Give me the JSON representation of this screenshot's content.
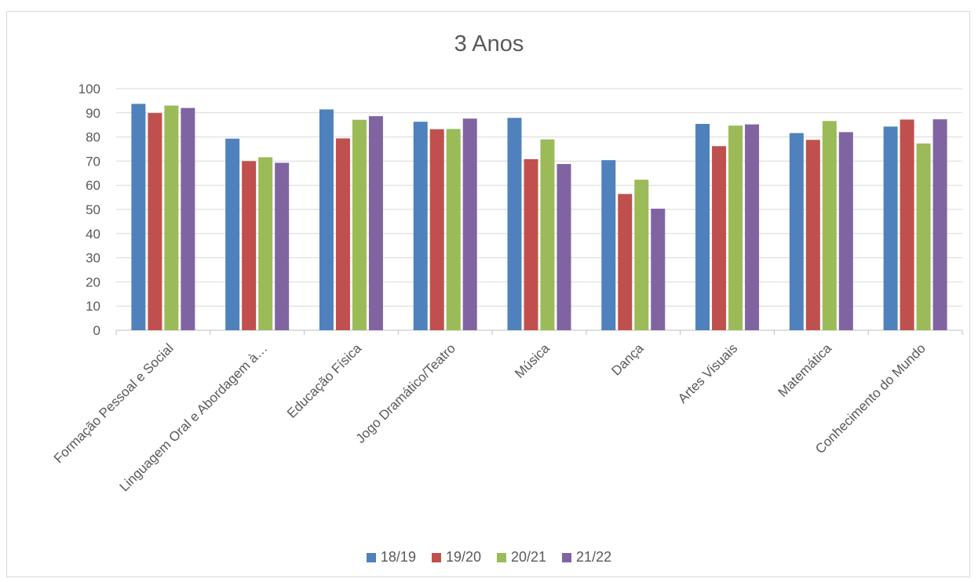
{
  "chart_data": {
    "type": "bar",
    "title": "3 Anos",
    "xlabel": "",
    "ylabel": "",
    "ylim": [
      0,
      100
    ],
    "yticks": [
      0,
      10,
      20,
      30,
      40,
      50,
      60,
      70,
      80,
      90,
      100
    ],
    "grid": true,
    "legend_position": "bottom",
    "categories": [
      "Formação Pessoal e Social",
      "Linguagem Oral e Abordagem à…",
      "Educação Física",
      "Jogo Dramático/Teatro",
      "Música",
      "Dança",
      "Artes Visuais",
      "Matemática",
      "Conhecimento do Mundo"
    ],
    "series": [
      {
        "name": "18/19",
        "color": "#4f81bd",
        "values": [
          93.7,
          79.3,
          91.4,
          86.3,
          87.9,
          70.4,
          85.4,
          81.6,
          84.3
        ]
      },
      {
        "name": "19/20",
        "color": "#c0504d",
        "values": [
          89.9,
          70.0,
          79.4,
          83.2,
          70.8,
          56.4,
          76.2,
          78.8,
          87.2
        ]
      },
      {
        "name": "20/21",
        "color": "#9bbb59",
        "values": [
          93.0,
          71.6,
          87.1,
          83.3,
          79.0,
          62.3,
          84.7,
          86.6,
          77.3
        ]
      },
      {
        "name": "21/22",
        "color": "#8064a2",
        "values": [
          92.0,
          69.3,
          88.6,
          87.6,
          68.8,
          50.3,
          85.2,
          82.0,
          87.3
        ]
      }
    ]
  }
}
